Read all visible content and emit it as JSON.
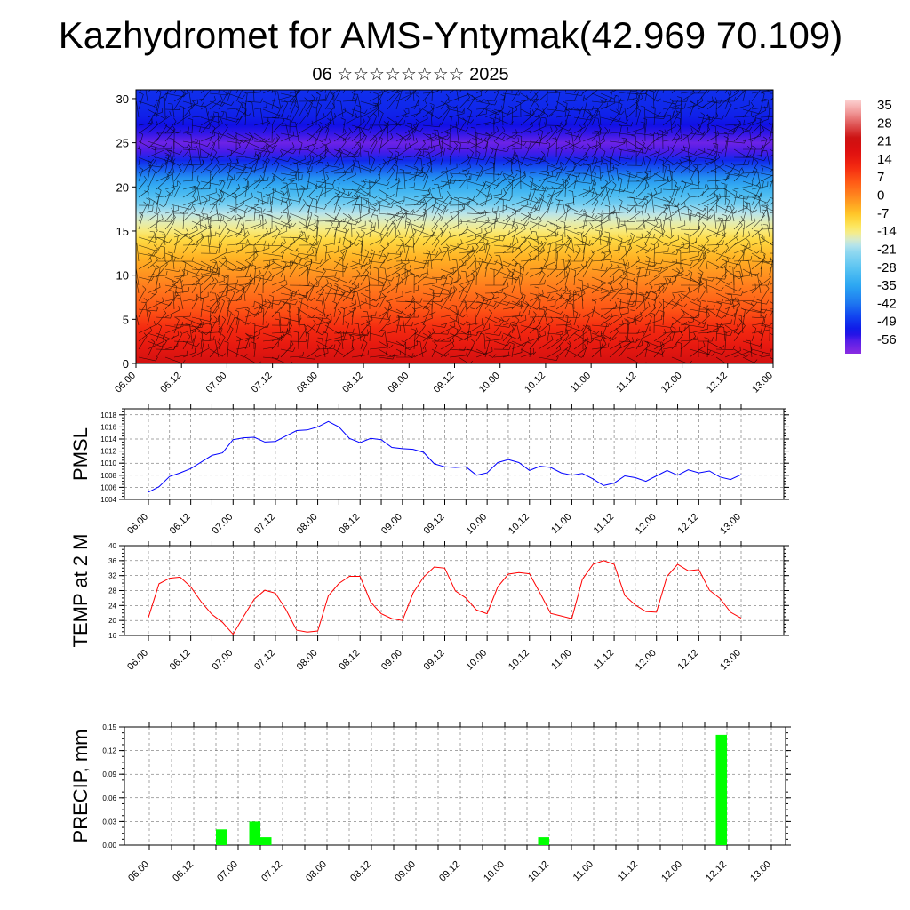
{
  "title": "Kazhydromet for AMS-Yntymak(42.969 70.109)",
  "subtitle": "06 ☆☆☆☆☆☆☆☆ 2025",
  "colors": {
    "pmsl_line": "#0000ff",
    "temp_line": "#ff0000",
    "precip_bar": "#00ff00",
    "wind_barbs": "#000000"
  },
  "chart_data": [
    {
      "id": "cross_section",
      "type": "heatmap",
      "title": "",
      "xlabel": "",
      "ylabel": "",
      "x_ticks": [
        "06.00",
        "06.12",
        "07.00",
        "07.12",
        "08.00",
        "08.12",
        "09.00",
        "09.12",
        "10.00",
        "10.12",
        "11.00",
        "11.12",
        "12.00",
        "12.12",
        "13.00"
      ],
      "y_ticks": [
        0,
        5,
        10,
        15,
        20,
        25,
        30
      ],
      "ylim": [
        0,
        31
      ],
      "colorbar_labels": [
        "35",
        "28",
        "21",
        "14",
        "7",
        "0",
        "-7",
        "-14",
        "-21",
        "-28",
        "-35",
        "-42",
        "-49",
        "-56"
      ],
      "colorbar_range": [
        -63,
        42
      ],
      "temperature_profile": {
        "heights": [
          0,
          2,
          4,
          6,
          8,
          10,
          12,
          14,
          15,
          16,
          17,
          18,
          19,
          20,
          21,
          22,
          23,
          24,
          25,
          26,
          27,
          28,
          29,
          31
        ],
        "values": [
          24,
          18,
          14,
          9,
          5,
          1,
          -3,
          -8,
          -12,
          -15,
          -18,
          -24,
          -29,
          -33,
          -38,
          -45,
          -51,
          -57,
          -60,
          -56,
          -54,
          -52,
          -51,
          -50
        ]
      },
      "overlay": "wind barbs",
      "grid": false
    },
    {
      "id": "pmsl",
      "type": "line",
      "ylabel": "PMSL",
      "x_ticks": [
        "06.00",
        "06.12",
        "07.00",
        "07.12",
        "08.00",
        "08.12",
        "09.00",
        "09.12",
        "10.00",
        "10.12",
        "11.00",
        "11.12",
        "12.00",
        "12.12",
        "13.00"
      ],
      "y_ticks": [
        1004,
        1006,
        1008,
        1010,
        1012,
        1014,
        1016,
        1018
      ],
      "ylim": [
        1004,
        1019
      ],
      "x": [
        0,
        3,
        6,
        9,
        12,
        15,
        18,
        21,
        24,
        27,
        30,
        33,
        36,
        39,
        42,
        45,
        48,
        51,
        54,
        57,
        60,
        63,
        66,
        69,
        72,
        75,
        78,
        81,
        84,
        87,
        90,
        93,
        96,
        99,
        102,
        105,
        108,
        111,
        114,
        117,
        120,
        123,
        126,
        129,
        132,
        135,
        138,
        141,
        144,
        147,
        150,
        153,
        156,
        159,
        162,
        165,
        168
      ],
      "series": [
        {
          "values": [
            1005.2,
            1006.1,
            1007.8,
            1008.4,
            1009.1,
            1010.2,
            1011.3,
            1011.7,
            1013.9,
            1014.2,
            1014.3,
            1013.5,
            1013.6,
            1014.5,
            1015.4,
            1015.5,
            1016.0,
            1016.9,
            1016.0,
            1014.1,
            1013.4,
            1014.1,
            1013.9,
            1012.6,
            1012.4,
            1012.3,
            1011.8,
            1009.9,
            1009.4,
            1009.3,
            1009.4,
            1008.0,
            1008.4,
            1010.1,
            1010.6,
            1010.1,
            1008.8,
            1009.5,
            1009.3,
            1008.4,
            1008.0,
            1008.3,
            1007.4,
            1006.3,
            1006.7,
            1007.9,
            1007.6,
            1007.0,
            1007.9,
            1008.8,
            1008.0,
            1008.9,
            1008.4,
            1008.7,
            1007.7,
            1007.3,
            1008.1
          ]
        }
      ],
      "grid": true
    },
    {
      "id": "temp2m",
      "type": "line",
      "ylabel": "TEMP at 2 M",
      "x_ticks": [
        "06.00",
        "06.12",
        "07.00",
        "07.12",
        "08.00",
        "08.12",
        "09.00",
        "09.12",
        "10.00",
        "10.12",
        "11.00",
        "11.12",
        "12.00",
        "12.12",
        "13.00"
      ],
      "y_ticks": [
        16,
        20,
        24,
        28,
        32,
        36,
        40
      ],
      "ylim": [
        16,
        40
      ],
      "x": [
        0,
        3,
        6,
        9,
        12,
        15,
        18,
        21,
        24,
        27,
        30,
        33,
        36,
        39,
        42,
        45,
        48,
        51,
        54,
        57,
        60,
        63,
        66,
        69,
        72,
        75,
        78,
        81,
        84,
        87,
        90,
        93,
        96,
        99,
        102,
        105,
        108,
        111,
        114,
        117,
        120,
        123,
        126,
        129,
        132,
        135,
        138,
        141,
        144,
        147,
        150,
        153,
        156,
        159,
        162,
        165,
        168
      ],
      "series": [
        {
          "values": [
            20.8,
            29.8,
            31.3,
            31.6,
            29.0,
            24.9,
            21.6,
            19.5,
            16.3,
            21.1,
            25.7,
            28.1,
            27.3,
            22.9,
            17.4,
            16.9,
            17.2,
            26.6,
            29.9,
            31.8,
            31.8,
            24.9,
            21.8,
            20.5,
            20.0,
            27.3,
            31.6,
            34.3,
            34.0,
            27.9,
            26.0,
            22.8,
            21.8,
            29.0,
            32.4,
            32.8,
            32.5,
            27.3,
            21.9,
            21.2,
            20.5,
            31.0,
            35.0,
            36.0,
            35.0,
            26.7,
            24.1,
            22.4,
            22.2,
            31.8,
            35.0,
            33.3,
            33.6,
            28.1,
            25.9,
            22.2,
            20.6
          ]
        }
      ],
      "grid": true
    },
    {
      "id": "precip",
      "type": "bar",
      "ylabel": "PRECIP, mm",
      "x_ticks": [
        "06.00",
        "06.12",
        "07.00",
        "07.12",
        "08.00",
        "08.12",
        "09.00",
        "09.12",
        "10.00",
        "10.12",
        "11.00",
        "11.12",
        "12.00",
        "12.12",
        "13.00"
      ],
      "y_ticks": [
        "0.00",
        "0.03",
        "0.06",
        "0.09",
        "0.12",
        "0.15"
      ],
      "ylim": [
        0,
        0.15
      ],
      "x_bars": [
        18,
        27,
        30,
        105,
        153
      ],
      "series": [
        {
          "values": [
            0.02,
            0.03,
            0.01,
            0.01,
            0.14
          ]
        }
      ],
      "grid": true
    }
  ]
}
